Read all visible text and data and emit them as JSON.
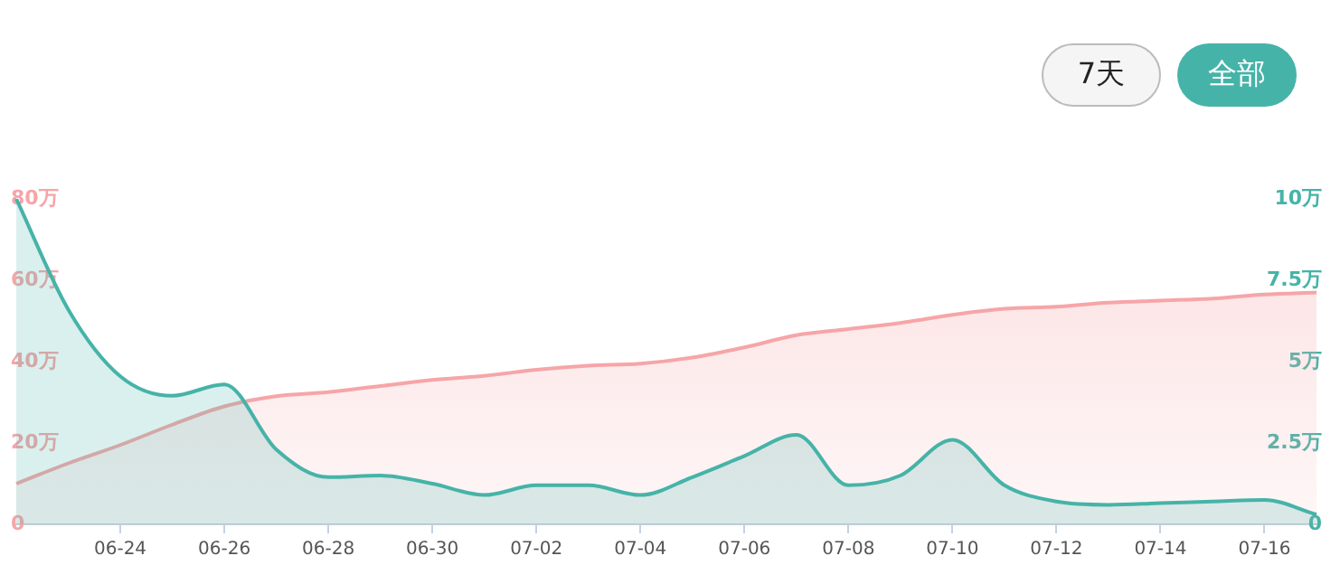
{
  "chart_data": {
    "type": "area",
    "categories": [
      null,
      null,
      "06-24",
      null,
      "06-26",
      null,
      "06-28",
      null,
      "06-30",
      null,
      "07-02",
      null,
      "07-04",
      null,
      "07-06",
      null,
      "07-08",
      null,
      "07-10",
      null,
      "07-12",
      null,
      "07-14",
      null,
      "07-16",
      null
    ],
    "series": [
      {
        "color": "#f6a5a8",
        "values": [
          10,
          15,
          19.5,
          24.5,
          29,
          31.5,
          32.5,
          34,
          35.5,
          36.5,
          38,
          39,
          39.5,
          41,
          43.5,
          46.5,
          48,
          49.5,
          51.5,
          53,
          53.5,
          54.5,
          55,
          55.5,
          56.5,
          57
        ]
      },
      {
        "color": "#46b3a8",
        "axis": "y2",
        "values": [
          10,
          6.6,
          4.55,
          3.95,
          4.3,
          2.3,
          1.45,
          1.5,
          1.25,
          0.9,
          1.2,
          1.2,
          0.9,
          1.45,
          2.1,
          2.75,
          1.2,
          1.5,
          2.6,
          1.2,
          0.7,
          0.6,
          0.65,
          0.7,
          0.75,
          0.3
        ]
      }
    ],
    "ylim": [
      0,
      80
    ],
    "yticks": [
      0,
      {
        "value": 20,
        "label": "20万"
      },
      {
        "value": 40,
        "label": "40万"
      },
      {
        "value": 60,
        "label": "60万"
      },
      {
        "value": 80,
        "label": "80万"
      }
    ],
    "y2lim": [
      0,
      10
    ],
    "y2ticks": [
      0,
      {
        "value": 2.5,
        "label": "2.5万"
      },
      {
        "value": 5,
        "label": "5万"
      },
      {
        "value": 7.5,
        "label": "7.5万"
      },
      {
        "value": 10,
        "label": "10万"
      }
    ],
    "annotations": [
      "7天",
      "全部"
    ],
    "marker": "none",
    "grid": false,
    "legend": false
  }
}
